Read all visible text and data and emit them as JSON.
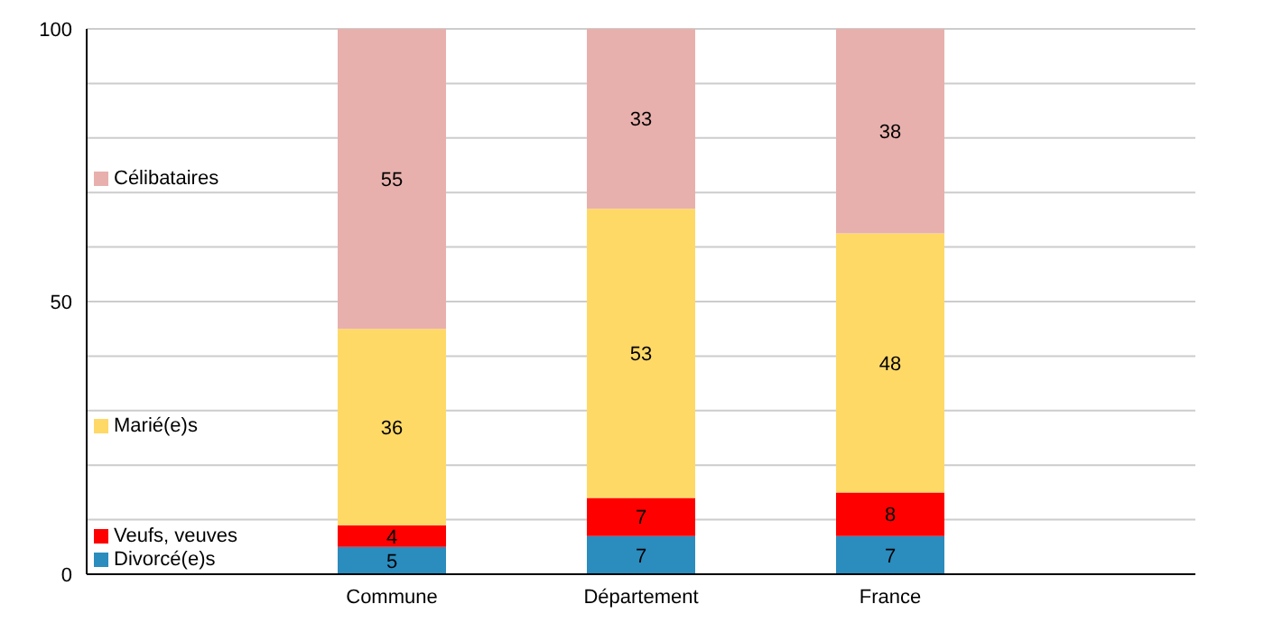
{
  "chart_data": {
    "type": "bar",
    "stacked": true,
    "categories": [
      "Commune",
      "Département",
      "France"
    ],
    "series": [
      {
        "name": "Divorcé(e)s",
        "color": "#2b8cbe",
        "values": [
          5,
          7,
          7
        ]
      },
      {
        "name": "Veufs, veuves",
        "color": "#ff0000",
        "values": [
          4,
          7,
          8
        ]
      },
      {
        "name": "Marié(e)s",
        "color": "#ffd966",
        "values": [
          36,
          53,
          47.5
        ],
        "value_labels": [
          "36",
          "53",
          "48"
        ]
      },
      {
        "name": "Célibataires",
        "color": "#e8b0ac",
        "values": [
          55,
          33,
          37.5
        ],
        "value_labels": [
          "55",
          "33",
          "38"
        ]
      }
    ],
    "ylim": [
      0,
      100
    ],
    "yticks": [
      0,
      {
        "value": 10,
        "label": null
      },
      {
        "value": 20,
        "label": null
      },
      {
        "value": 30,
        "label": null
      },
      {
        "value": 40,
        "label": null
      },
      50,
      {
        "value": 60,
        "label": null
      },
      {
        "value": 70,
        "label": null
      },
      {
        "value": 80,
        "label": null
      },
      {
        "value": 90,
        "label": null
      },
      100
    ],
    "grid": "y",
    "legend": "left",
    "data_labels": true
  }
}
